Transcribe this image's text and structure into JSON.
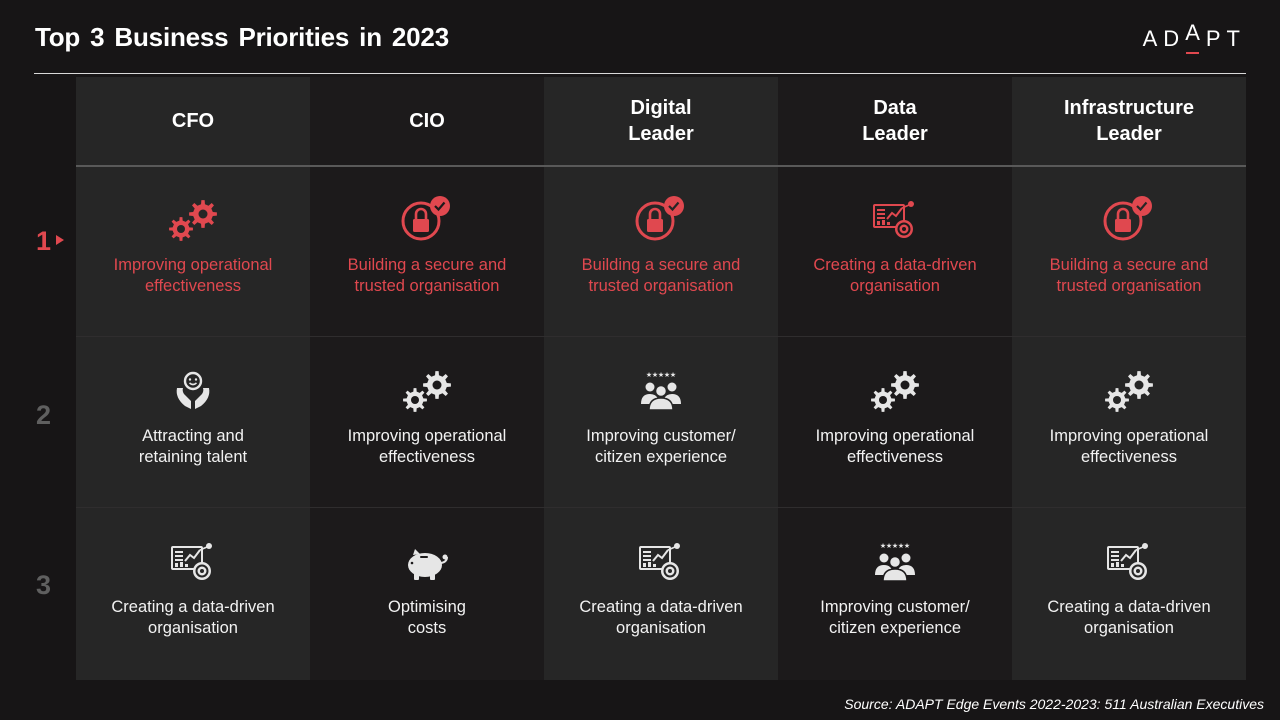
{
  "title": "Top 3 Business Priorities in 2023",
  "logo": {
    "pre": "AD",
    "special": "A",
    "post": "PT"
  },
  "source": "Source: ADAPT Edge Events 2022-2023: 511 Australian Executives",
  "colors": {
    "accent": "#e0484f",
    "background": "#171516",
    "col_light": "#262626",
    "col_dark": "#1c1a1b"
  },
  "ranks": [
    "1",
    "2",
    "3"
  ],
  "columns": [
    {
      "header": "CFO",
      "priorities": [
        {
          "text": "Improving operational\neffectiveness",
          "icon": "gears-icon"
        },
        {
          "text": "Attracting and\nretaining talent",
          "icon": "hands-person-icon"
        },
        {
          "text": "Creating a data-driven\norganisation",
          "icon": "data-dashboard-icon"
        }
      ]
    },
    {
      "header": "CIO",
      "priorities": [
        {
          "text": "Building a secure and\ntrusted organisation",
          "icon": "secure-lock-icon"
        },
        {
          "text": "Improving operational\neffectiveness",
          "icon": "gears-icon"
        },
        {
          "text": "Optimising\ncosts",
          "icon": "piggy-bank-icon"
        }
      ]
    },
    {
      "header": "Digital\nLeader",
      "priorities": [
        {
          "text": "Building a secure and\ntrusted organisation",
          "icon": "secure-lock-icon"
        },
        {
          "text": "Improving customer/\ncitizen experience",
          "icon": "customers-stars-icon"
        },
        {
          "text": "Creating a data-driven\norganisation",
          "icon": "data-dashboard-icon"
        }
      ]
    },
    {
      "header": "Data\nLeader",
      "priorities": [
        {
          "text": "Creating a data-driven\norganisation",
          "icon": "data-dashboard-icon"
        },
        {
          "text": "Improving operational\neffectiveness",
          "icon": "gears-icon"
        },
        {
          "text": "Improving customer/\ncitizen experience",
          "icon": "customers-stars-icon"
        }
      ]
    },
    {
      "header": "Infrastructure\nLeader",
      "priorities": [
        {
          "text": "Building a secure and\ntrusted organisation",
          "icon": "secure-lock-icon"
        },
        {
          "text": "Improving operational\neffectiveness",
          "icon": "gears-icon"
        },
        {
          "text": "Creating a data-driven\norganisation",
          "icon": "data-dashboard-icon"
        }
      ]
    }
  ]
}
